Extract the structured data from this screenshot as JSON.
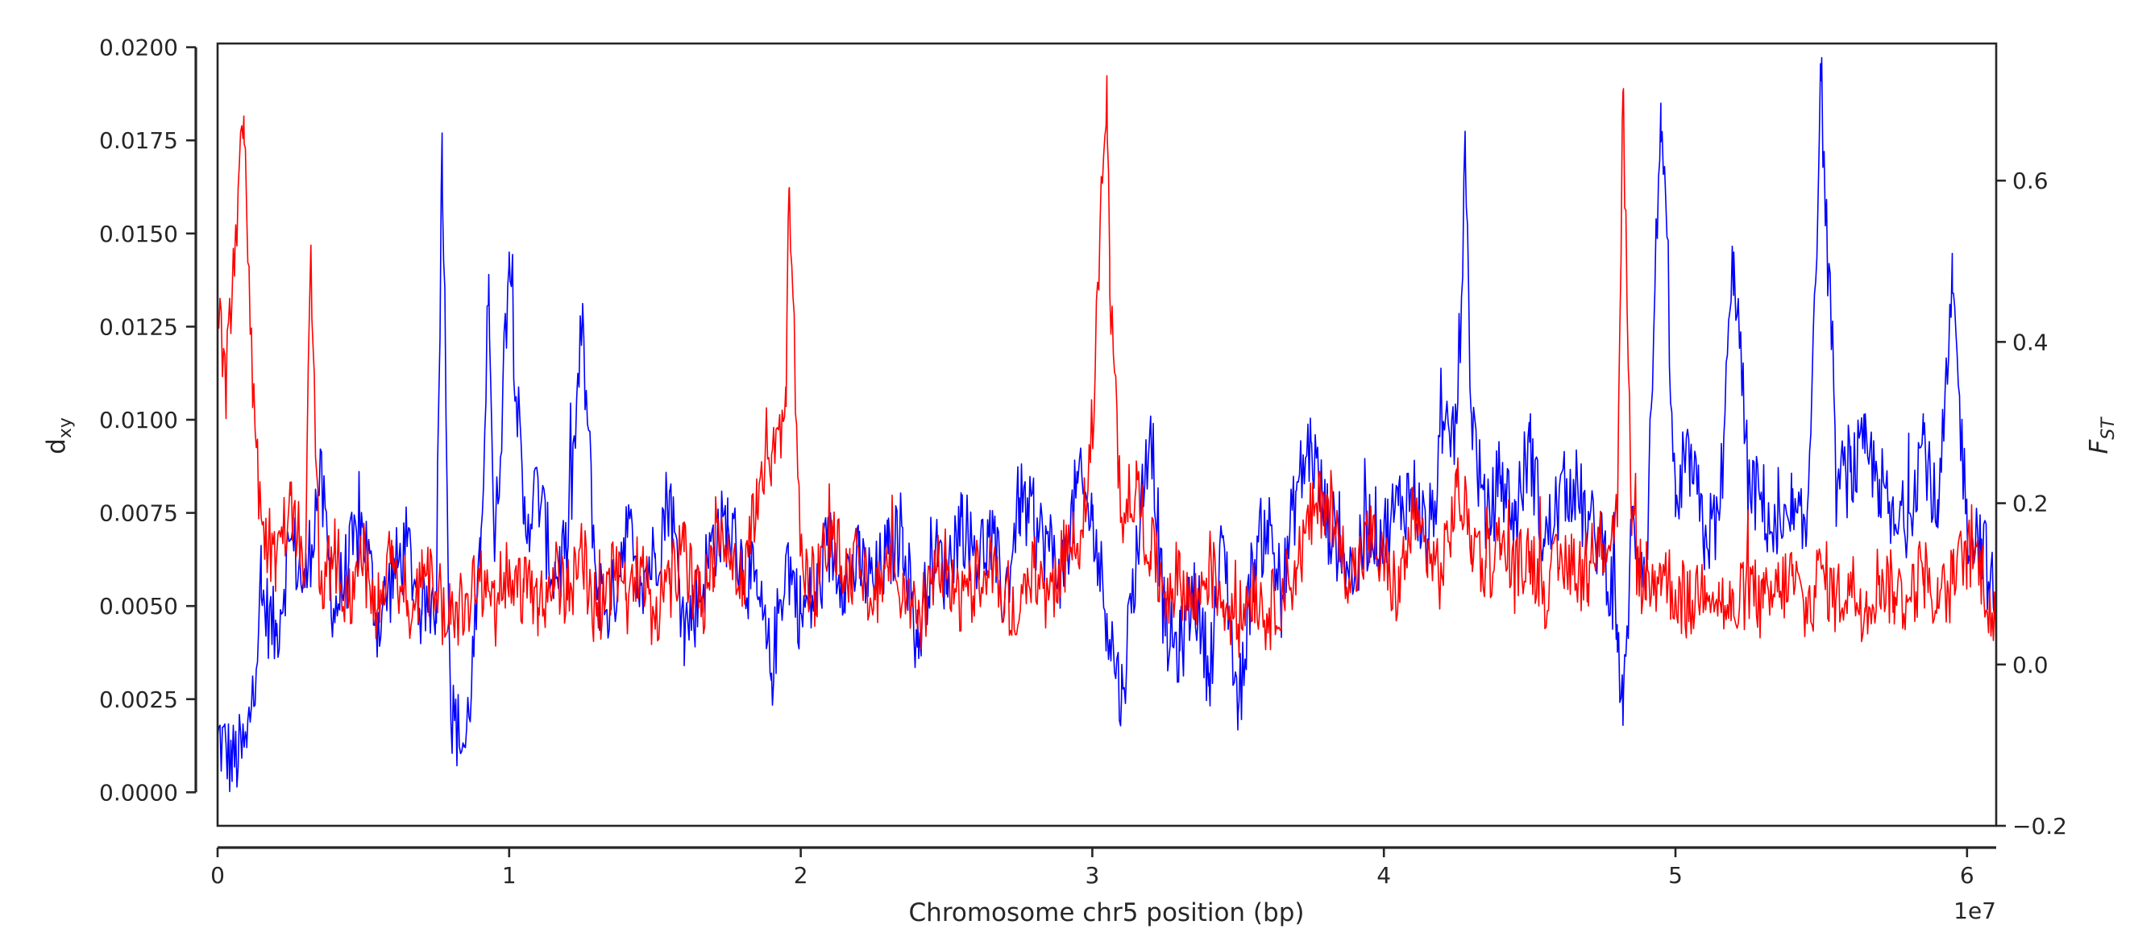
{
  "chart_data": {
    "type": "line",
    "xlabel": "Chromosome chr5 position (bp)",
    "x_offset_label": "1e7",
    "xlim": [
      0,
      61000000
    ],
    "x_ticks": [
      0,
      10000000,
      20000000,
      30000000,
      40000000,
      50000000,
      60000000
    ],
    "x_tick_labels": [
      "0",
      "1",
      "2",
      "3",
      "4",
      "5",
      "6"
    ],
    "left_axis": {
      "label_main": "d",
      "label_sub": "xy",
      "color": "#0000ff",
      "ylim": [
        -0.0009,
        0.0201
      ],
      "ticks": [
        0.0,
        0.0025,
        0.005,
        0.0075,
        0.01,
        0.0125,
        0.015,
        0.0175,
        0.02
      ],
      "tick_labels": [
        "0.0000",
        "0.0025",
        "0.0050",
        "0.0075",
        "0.0100",
        "0.0125",
        "0.0150",
        "0.0175",
        "0.0200"
      ]
    },
    "right_axis": {
      "label_main": "F",
      "label_sub": "ST",
      "color": "#ff0000",
      "ylim": [
        -0.2,
        0.77
      ],
      "ticks": [
        -0.2,
        0.0,
        0.2,
        0.4,
        0.6
      ],
      "tick_labels": [
        "−0.2",
        "0.0",
        "0.2",
        "0.4",
        "0.6"
      ]
    },
    "grid": false,
    "legend": "none",
    "series": [
      {
        "axis": "left",
        "color": "#0000ff",
        "x": [
          0,
          500000,
          1000000,
          1500000,
          2000000,
          2500000,
          3000000,
          3500000,
          4000000,
          4500000,
          5000000,
          5500000,
          6000000,
          6500000,
          7000000,
          7500000,
          7700000,
          8000000,
          8500000,
          9000000,
          9300000,
          9500000,
          10000000,
          10500000,
          11000000,
          11500000,
          12000000,
          12500000,
          13000000,
          13500000,
          14000000,
          14500000,
          15000000,
          15500000,
          16000000,
          16500000,
          17000000,
          17500000,
          18000000,
          18500000,
          19000000,
          19500000,
          20000000,
          20500000,
          21000000,
          21500000,
          22000000,
          22500000,
          23000000,
          23500000,
          24000000,
          24500000,
          25000000,
          25500000,
          26000000,
          26500000,
          27000000,
          27500000,
          28000000,
          28500000,
          29000000,
          29500000,
          30000000,
          30500000,
          31000000,
          31500000,
          32000000,
          32500000,
          33000000,
          33500000,
          34000000,
          34500000,
          35000000,
          35500000,
          36000000,
          36500000,
          37000000,
          37500000,
          38000000,
          38500000,
          39000000,
          39500000,
          40000000,
          40500000,
          41000000,
          41500000,
          42000000,
          42500000,
          42800000,
          43000000,
          43500000,
          44000000,
          44500000,
          45000000,
          45500000,
          46000000,
          46500000,
          47000000,
          47500000,
          48000000,
          48200000,
          48500000,
          49000000,
          49500000,
          50000000,
          50500000,
          51000000,
          51500000,
          52000000,
          52500000,
          53000000,
          53500000,
          54000000,
          54500000,
          55000000,
          55500000,
          56000000,
          56500000,
          57000000,
          57500000,
          58000000,
          58500000,
          59000000,
          59500000,
          60000000,
          60500000,
          61000000
        ],
        "y": [
          0.0015,
          0.0008,
          0.0012,
          0.0052,
          0.0042,
          0.0068,
          0.0055,
          0.0085,
          0.0048,
          0.0062,
          0.0071,
          0.0045,
          0.0058,
          0.0066,
          0.0049,
          0.0052,
          0.0177,
          0.0021,
          0.0012,
          0.0058,
          0.0139,
          0.0062,
          0.0145,
          0.0072,
          0.0081,
          0.0058,
          0.0064,
          0.0125,
          0.0055,
          0.0049,
          0.0072,
          0.0058,
          0.0063,
          0.0081,
          0.0044,
          0.0052,
          0.0068,
          0.0072,
          0.0061,
          0.0053,
          0.0032,
          0.0064,
          0.0048,
          0.0052,
          0.0066,
          0.0058,
          0.0061,
          0.0055,
          0.0064,
          0.0071,
          0.0039,
          0.0065,
          0.0059,
          0.0074,
          0.0063,
          0.0068,
          0.0052,
          0.0079,
          0.0071,
          0.0066,
          0.0059,
          0.0083,
          0.0073,
          0.0048,
          0.0025,
          0.0063,
          0.0101,
          0.0042,
          0.0038,
          0.0055,
          0.0032,
          0.0068,
          0.0021,
          0.0061,
          0.0073,
          0.0052,
          0.0081,
          0.0094,
          0.0074,
          0.0066,
          0.0058,
          0.0072,
          0.0069,
          0.0077,
          0.0081,
          0.0068,
          0.0091,
          0.0099,
          0.0168,
          0.0102,
          0.0071,
          0.0085,
          0.0073,
          0.0094,
          0.0066,
          0.0078,
          0.0084,
          0.0071,
          0.0068,
          0.0045,
          0.0018,
          0.0072,
          0.0061,
          0.0185,
          0.0074,
          0.0089,
          0.0068,
          0.0073,
          0.0145,
          0.0082,
          0.0078,
          0.0066,
          0.0072,
          0.0069,
          0.0191,
          0.0082,
          0.0086,
          0.0091,
          0.0084,
          0.0069,
          0.0075,
          0.0096,
          0.0071,
          0.0134,
          0.0072,
          0.0068,
          0.0048
        ]
      },
      {
        "axis": "right",
        "color": "#ff0000",
        "x": [
          0,
          300000,
          600000,
          900000,
          1200000,
          1500000,
          2000000,
          2500000,
          3000000,
          3200000,
          3500000,
          4000000,
          4500000,
          5000000,
          5500000,
          6000000,
          6500000,
          7000000,
          7500000,
          8000000,
          8500000,
          9000000,
          9500000,
          10000000,
          10500000,
          11000000,
          11500000,
          12000000,
          12500000,
          13000000,
          13500000,
          14000000,
          14500000,
          15000000,
          15500000,
          16000000,
          16500000,
          17000000,
          17500000,
          18000000,
          18500000,
          19000000,
          19500000,
          19600000,
          20000000,
          20500000,
          21000000,
          21500000,
          22000000,
          22500000,
          23000000,
          23500000,
          24000000,
          24500000,
          25000000,
          25500000,
          26000000,
          26500000,
          27000000,
          27500000,
          28000000,
          28500000,
          29000000,
          29500000,
          30000000,
          30500000,
          30600000,
          31000000,
          31500000,
          32000000,
          32500000,
          33000000,
          33500000,
          34000000,
          34500000,
          35000000,
          35500000,
          36000000,
          36500000,
          37000000,
          37500000,
          38000000,
          38500000,
          39000000,
          39500000,
          40000000,
          40500000,
          41000000,
          41500000,
          42000000,
          42500000,
          43000000,
          43500000,
          44000000,
          44500000,
          45000000,
          45500000,
          46000000,
          46500000,
          47000000,
          47500000,
          48000000,
          48200000,
          48500000,
          49000000,
          49500000,
          50000000,
          50500000,
          51000000,
          51500000,
          52000000,
          52500000,
          53000000,
          53500000,
          54000000,
          54500000,
          55000000,
          55500000,
          56000000,
          56500000,
          57000000,
          57500000,
          58000000,
          58500000,
          59000000,
          59500000,
          60000000,
          60500000,
          61000000
        ],
        "y": [
          0.43,
          0.35,
          0.52,
          0.68,
          0.33,
          0.18,
          0.12,
          0.21,
          0.11,
          0.52,
          0.09,
          0.14,
          0.08,
          0.13,
          0.07,
          0.12,
          0.06,
          0.11,
          0.09,
          0.05,
          0.08,
          0.11,
          0.06,
          0.13,
          0.09,
          0.07,
          0.12,
          0.08,
          0.14,
          0.06,
          0.11,
          0.08,
          0.13,
          0.05,
          0.1,
          0.14,
          0.07,
          0.12,
          0.16,
          0.11,
          0.19,
          0.26,
          0.32,
          0.59,
          0.14,
          0.09,
          0.18,
          0.11,
          0.13,
          0.07,
          0.12,
          0.08,
          0.05,
          0.1,
          0.13,
          0.07,
          0.11,
          0.14,
          0.09,
          0.06,
          0.12,
          0.08,
          0.13,
          0.15,
          0.29,
          0.73,
          0.46,
          0.18,
          0.22,
          0.14,
          0.09,
          0.11,
          0.07,
          0.12,
          0.08,
          0.05,
          0.1,
          0.06,
          0.09,
          0.12,
          0.18,
          0.21,
          0.14,
          0.11,
          0.16,
          0.12,
          0.09,
          0.18,
          0.14,
          0.11,
          0.22,
          0.16,
          0.12,
          0.15,
          0.11,
          0.14,
          0.09,
          0.12,
          0.13,
          0.1,
          0.15,
          0.18,
          0.71,
          0.16,
          0.08,
          0.12,
          0.09,
          0.07,
          0.11,
          0.08,
          0.06,
          0.1,
          0.07,
          0.09,
          0.11,
          0.06,
          0.12,
          0.08,
          0.1,
          0.07,
          0.11,
          0.09,
          0.08,
          0.12,
          0.07,
          0.1,
          0.14,
          0.12,
          0.04
        ]
      }
    ]
  }
}
